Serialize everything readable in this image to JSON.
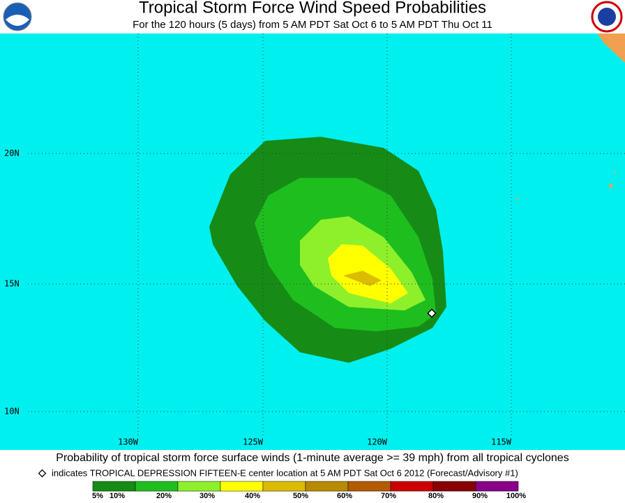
{
  "header": {
    "title": "Tropical Storm Force Wind Speed Probabilities",
    "subtitle": "For the 120 hours (5 days) from 5 AM PDT Sat Oct 6 to 5 AM PDT Thu Oct 11"
  },
  "map": {
    "lat_labels": [
      "20N",
      "15N",
      "10N"
    ],
    "lon_labels": [
      "130W",
      "125W",
      "120W",
      "115W"
    ]
  },
  "footer": {
    "caption": "Probability of tropical storm force surface winds (1-minute average >= 39 mph) from all tropical cyclones",
    "note": "indicates TROPICAL DEPRESSION FIFTEEN-E center location at 5 AM PDT Sat Oct 6 2012 (Forecast/Advisory #1)"
  },
  "legend": {
    "labels": [
      "5%",
      "10%",
      "20%",
      "30%",
      "40%",
      "50%",
      "60%",
      "70%",
      "80%",
      "90%",
      "100%"
    ],
    "colors": [
      "#168c16",
      "#1fbe1f",
      "#8ef02a",
      "#ffff00",
      "#dcbc00",
      "#b88a00",
      "#b45a00",
      "#cc0000",
      "#880000",
      "#880088"
    ]
  }
}
